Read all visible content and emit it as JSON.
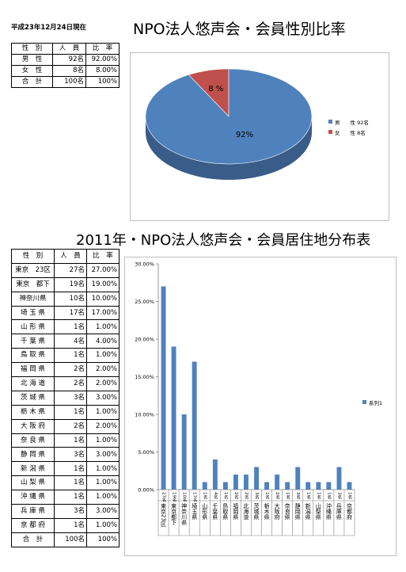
{
  "header": {
    "date": "平成23年12月24日現在",
    "title1": "NPO法人悠声会・会員性別比率",
    "title2": "2011年・NPO法人悠声会・会員居住地分布表"
  },
  "gender_table": {
    "headers": [
      "性　別",
      "人　員",
      "比　率"
    ],
    "rows": [
      {
        "label": "男　性",
        "count": "92名",
        "ratio": "92.00%"
      },
      {
        "label": "女　性",
        "count": "8名",
        "ratio": "8.00%"
      },
      {
        "label": "合　計",
        "count": "100名",
        "ratio": "100%"
      }
    ]
  },
  "region_table": {
    "headers": [
      "性　別",
      "人　員",
      "比　率"
    ],
    "rows": [
      {
        "label": "東京　23区",
        "count": "27名",
        "ratio": "27.00%"
      },
      {
        "label": "東京　都下",
        "count": "19名",
        "ratio": "19.00%"
      },
      {
        "label": "神奈川県",
        "count": "10名",
        "ratio": "10.00%"
      },
      {
        "label": "埼 玉 県",
        "count": "17名",
        "ratio": "17.00%"
      },
      {
        "label": "山 形 県",
        "count": "1名",
        "ratio": "1.00%"
      },
      {
        "label": "千 葉 県",
        "count": "4名",
        "ratio": "4.00%"
      },
      {
        "label": "鳥 取 県",
        "count": "1名",
        "ratio": "1.00%"
      },
      {
        "label": "福 岡 県",
        "count": "2名",
        "ratio": "2.00%"
      },
      {
        "label": "北 海 道",
        "count": "2名",
        "ratio": "2.00%"
      },
      {
        "label": "茨 城 県",
        "count": "3名",
        "ratio": "3.00%"
      },
      {
        "label": "栃 木 県",
        "count": "1名",
        "ratio": "1.00%"
      },
      {
        "label": "大 阪 府",
        "count": "2名",
        "ratio": "2.00%"
      },
      {
        "label": "奈 良 県",
        "count": "1名",
        "ratio": "1.00%"
      },
      {
        "label": "静 岡 県",
        "count": "3名",
        "ratio": "3.00%"
      },
      {
        "label": "新 潟 県",
        "count": "1名",
        "ratio": "1.00%"
      },
      {
        "label": "山 梨 県",
        "count": "1名",
        "ratio": "1.00%"
      },
      {
        "label": "沖 縄 県",
        "count": "1名",
        "ratio": "1.00%"
      },
      {
        "label": "兵 庫 県",
        "count": "3名",
        "ratio": "3.00%"
      },
      {
        "label": "京 都 府",
        "count": "1名",
        "ratio": "1.00%"
      }
    ],
    "total": {
      "label": "合　計",
      "count": "100名",
      "ratio": "100%"
    }
  },
  "chart_data": [
    {
      "type": "pie",
      "title": "",
      "categories": [
        "男",
        "女"
      ],
      "values": [
        92,
        8
      ],
      "data_labels": [
        "92%",
        "8 %"
      ],
      "legend": [
        "男　　性 92名",
        "女　　性 8名"
      ],
      "legend_position": "right",
      "colors": [
        "#4f81bd",
        "#c0504d"
      ],
      "style": "3d"
    },
    {
      "type": "bar",
      "title": "",
      "categories": [
        "東京23区",
        "東京都下",
        "神奈川県",
        "埼玉県",
        "山形県",
        "千葉県",
        "鳥取県",
        "福岡県",
        "北海道",
        "茨城県",
        "栃木県",
        "大阪府",
        "奈良県",
        "静岡県",
        "新潟県",
        "山梨県",
        "沖縄県",
        "兵庫県",
        "京都府"
      ],
      "counts": [
        "27名",
        "19名",
        "10名",
        "17名",
        "1名",
        "4名",
        "1名",
        "2名",
        "2名",
        "3名",
        "1名",
        "2名",
        "1名",
        "3名",
        "1名",
        "1名",
        "1名",
        "3名",
        "1名"
      ],
      "series": [
        {
          "name": "系列1",
          "values": [
            27,
            19,
            10,
            17,
            1,
            4,
            1,
            2,
            2,
            3,
            1,
            2,
            1,
            3,
            1,
            1,
            1,
            3,
            1
          ]
        }
      ],
      "ylim": [
        0,
        30
      ],
      "yticks": [
        "0.00%",
        "5.00%",
        "10.00%",
        "15.00%",
        "20.00%",
        "25.00%",
        "30.00%"
      ],
      "legend_position": "right",
      "colors": [
        "#4f81bd"
      ]
    }
  ]
}
